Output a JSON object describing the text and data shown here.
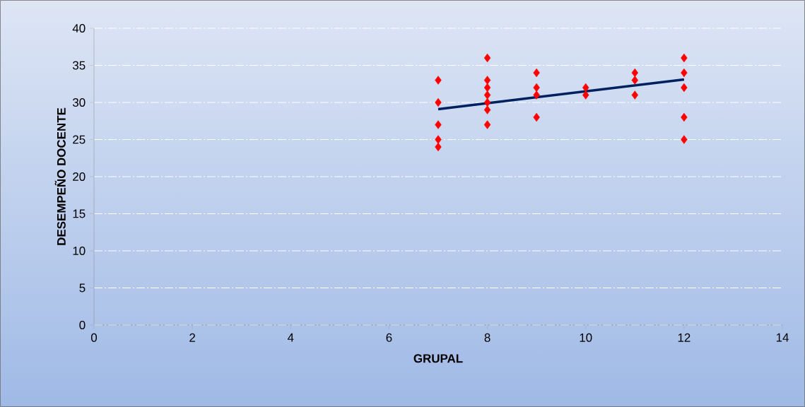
{
  "chart_data": {
    "type": "scatter",
    "xlabel": "GRUPAL",
    "ylabel": "DESEMPEÑO DOCENTE",
    "xlim": [
      0,
      14
    ],
    "xticks": [
      0,
      2,
      4,
      6,
      8,
      10,
      12,
      14
    ],
    "ylim": [
      0,
      40
    ],
    "yticks": [
      0,
      5,
      10,
      15,
      20,
      25,
      30,
      35,
      40
    ],
    "grid": "y",
    "series": [
      {
        "marker": "diamond",
        "color": "#ff0000",
        "x": [
          7,
          7,
          7,
          7,
          7,
          8,
          8,
          8,
          8,
          8,
          8,
          8,
          9,
          9,
          9,
          9,
          10,
          10,
          11,
          11,
          11,
          12,
          12,
          12,
          12,
          12
        ],
        "values": [
          33,
          30,
          27,
          25,
          24,
          36,
          33,
          32,
          31,
          30,
          29,
          27,
          34,
          32,
          31,
          28,
          32,
          31,
          34,
          33,
          31,
          36,
          34,
          32,
          28,
          25
        ]
      },
      {
        "type": "line",
        "marker": "none",
        "color": "#002060",
        "x": [
          7,
          12
        ],
        "values": [
          29.1,
          33.1
        ]
      }
    ]
  }
}
